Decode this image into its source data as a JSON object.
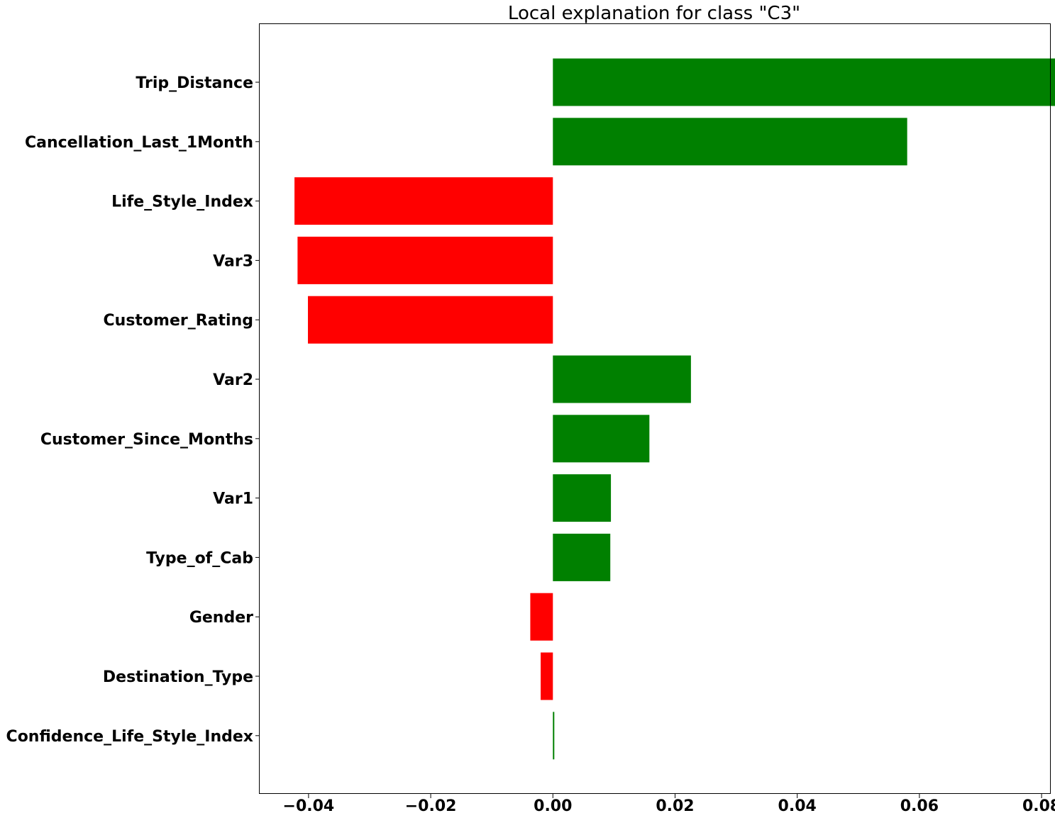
{
  "chart_data": {
    "type": "bar",
    "orientation": "horizontal",
    "title": "Local explanation for class \"C3\"",
    "xlabel": "",
    "ylabel": "",
    "xlim": [
      -0.048,
      0.0815
    ],
    "xticks": [
      -0.04,
      -0.02,
      0.0,
      0.02,
      0.04,
      0.06,
      0.08
    ],
    "xtick_labels": [
      "−0.04",
      "−0.02",
      "0.00",
      "0.02",
      "0.04",
      "0.06",
      "0.08"
    ],
    "categories": [
      "Trip_Distance",
      "Cancellation_Last_1Month",
      "Life_Style_Index",
      "Var3",
      "Customer_Rating",
      "Var2",
      "Customer_Since_Months",
      "Var1",
      "Type_of_Cab",
      "Gender",
      "Destination_Type",
      "Confidence_Life_Style_Index"
    ],
    "values": [
      0.0825,
      0.058,
      -0.0423,
      -0.0418,
      -0.0401,
      0.0226,
      0.0158,
      0.0095,
      0.0094,
      -0.0037,
      -0.002,
      0.0002
    ],
    "colors": {
      "positive": "#008000",
      "negative": "#ff0000"
    },
    "grid": false,
    "legend": "none"
  }
}
